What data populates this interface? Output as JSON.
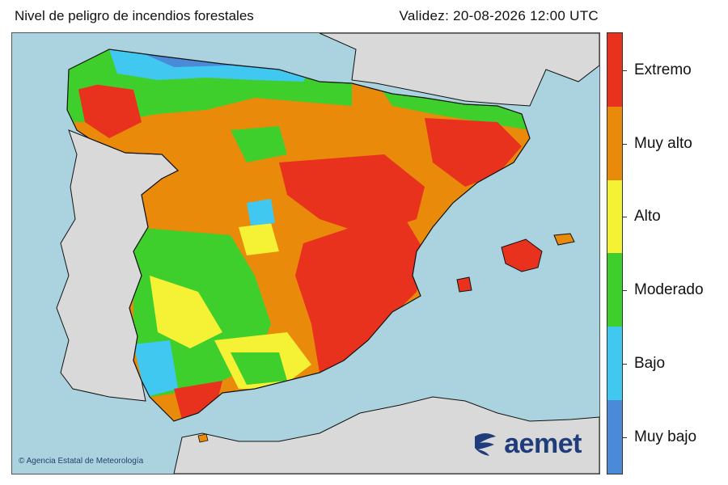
{
  "header": {
    "title": "Nivel de peligro de incendios forestales",
    "validity": "Validez: 20-08-2026 12:00 UTC"
  },
  "map": {
    "sea_color": "#aad3df",
    "land_color": "#d9d9d9"
  },
  "legend": {
    "items": [
      {
        "label": "Extremo",
        "color": "#e8321e"
      },
      {
        "label": "Muy alto",
        "color": "#e98a0b"
      },
      {
        "label": "Alto",
        "color": "#f5f134"
      },
      {
        "label": "Moderado",
        "color": "#3fcf2c"
      },
      {
        "label": "Bajo",
        "color": "#41c8f1"
      },
      {
        "label": "Muy bajo",
        "color": "#4a8ad8"
      }
    ]
  },
  "footer": {
    "copyright": "© Agencia Estatal de Meteorología",
    "logo_text": "aemet",
    "logo_icon": "aemet-logo-icon"
  }
}
